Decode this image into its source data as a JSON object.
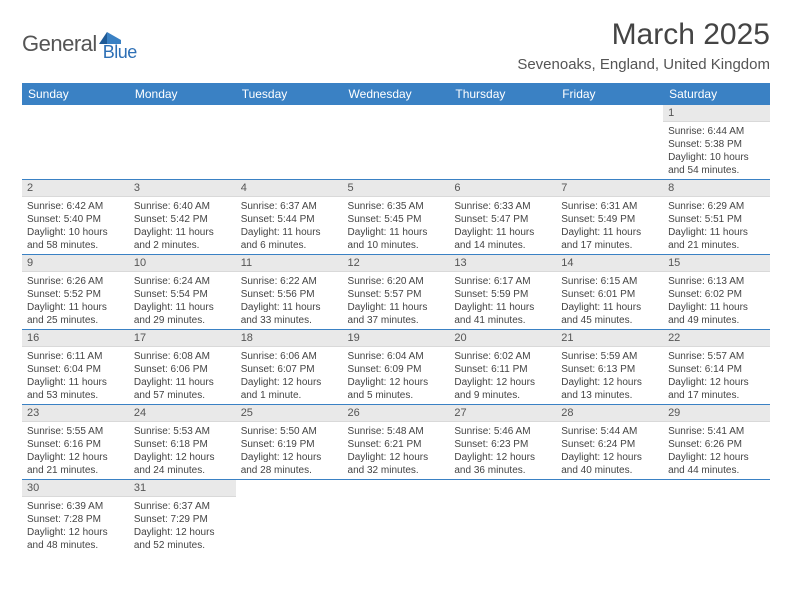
{
  "brand": {
    "name1": "General",
    "name2": "Blue"
  },
  "title": "March 2025",
  "location": "Sevenoaks, England, United Kingdom",
  "colors": {
    "header_bg": "#3a81c4",
    "header_fg": "#ffffff",
    "daynum_bg": "#e9e9e9",
    "text": "#444444",
    "brand_gray": "#555555",
    "brand_blue": "#2d6fb5"
  },
  "dayNames": [
    "Sunday",
    "Monday",
    "Tuesday",
    "Wednesday",
    "Thursday",
    "Friday",
    "Saturday"
  ],
  "weeks": [
    [
      null,
      null,
      null,
      null,
      null,
      null,
      {
        "n": "1",
        "sr": "Sunrise: 6:44 AM",
        "ss": "Sunset: 5:38 PM",
        "dl": "Daylight: 10 hours and 54 minutes."
      }
    ],
    [
      {
        "n": "2",
        "sr": "Sunrise: 6:42 AM",
        "ss": "Sunset: 5:40 PM",
        "dl": "Daylight: 10 hours and 58 minutes."
      },
      {
        "n": "3",
        "sr": "Sunrise: 6:40 AM",
        "ss": "Sunset: 5:42 PM",
        "dl": "Daylight: 11 hours and 2 minutes."
      },
      {
        "n": "4",
        "sr": "Sunrise: 6:37 AM",
        "ss": "Sunset: 5:44 PM",
        "dl": "Daylight: 11 hours and 6 minutes."
      },
      {
        "n": "5",
        "sr": "Sunrise: 6:35 AM",
        "ss": "Sunset: 5:45 PM",
        "dl": "Daylight: 11 hours and 10 minutes."
      },
      {
        "n": "6",
        "sr": "Sunrise: 6:33 AM",
        "ss": "Sunset: 5:47 PM",
        "dl": "Daylight: 11 hours and 14 minutes."
      },
      {
        "n": "7",
        "sr": "Sunrise: 6:31 AM",
        "ss": "Sunset: 5:49 PM",
        "dl": "Daylight: 11 hours and 17 minutes."
      },
      {
        "n": "8",
        "sr": "Sunrise: 6:29 AM",
        "ss": "Sunset: 5:51 PM",
        "dl": "Daylight: 11 hours and 21 minutes."
      }
    ],
    [
      {
        "n": "9",
        "sr": "Sunrise: 6:26 AM",
        "ss": "Sunset: 5:52 PM",
        "dl": "Daylight: 11 hours and 25 minutes."
      },
      {
        "n": "10",
        "sr": "Sunrise: 6:24 AM",
        "ss": "Sunset: 5:54 PM",
        "dl": "Daylight: 11 hours and 29 minutes."
      },
      {
        "n": "11",
        "sr": "Sunrise: 6:22 AM",
        "ss": "Sunset: 5:56 PM",
        "dl": "Daylight: 11 hours and 33 minutes."
      },
      {
        "n": "12",
        "sr": "Sunrise: 6:20 AM",
        "ss": "Sunset: 5:57 PM",
        "dl": "Daylight: 11 hours and 37 minutes."
      },
      {
        "n": "13",
        "sr": "Sunrise: 6:17 AM",
        "ss": "Sunset: 5:59 PM",
        "dl": "Daylight: 11 hours and 41 minutes."
      },
      {
        "n": "14",
        "sr": "Sunrise: 6:15 AM",
        "ss": "Sunset: 6:01 PM",
        "dl": "Daylight: 11 hours and 45 minutes."
      },
      {
        "n": "15",
        "sr": "Sunrise: 6:13 AM",
        "ss": "Sunset: 6:02 PM",
        "dl": "Daylight: 11 hours and 49 minutes."
      }
    ],
    [
      {
        "n": "16",
        "sr": "Sunrise: 6:11 AM",
        "ss": "Sunset: 6:04 PM",
        "dl": "Daylight: 11 hours and 53 minutes."
      },
      {
        "n": "17",
        "sr": "Sunrise: 6:08 AM",
        "ss": "Sunset: 6:06 PM",
        "dl": "Daylight: 11 hours and 57 minutes."
      },
      {
        "n": "18",
        "sr": "Sunrise: 6:06 AM",
        "ss": "Sunset: 6:07 PM",
        "dl": "Daylight: 12 hours and 1 minute."
      },
      {
        "n": "19",
        "sr": "Sunrise: 6:04 AM",
        "ss": "Sunset: 6:09 PM",
        "dl": "Daylight: 12 hours and 5 minutes."
      },
      {
        "n": "20",
        "sr": "Sunrise: 6:02 AM",
        "ss": "Sunset: 6:11 PM",
        "dl": "Daylight: 12 hours and 9 minutes."
      },
      {
        "n": "21",
        "sr": "Sunrise: 5:59 AM",
        "ss": "Sunset: 6:13 PM",
        "dl": "Daylight: 12 hours and 13 minutes."
      },
      {
        "n": "22",
        "sr": "Sunrise: 5:57 AM",
        "ss": "Sunset: 6:14 PM",
        "dl": "Daylight: 12 hours and 17 minutes."
      }
    ],
    [
      {
        "n": "23",
        "sr": "Sunrise: 5:55 AM",
        "ss": "Sunset: 6:16 PM",
        "dl": "Daylight: 12 hours and 21 minutes."
      },
      {
        "n": "24",
        "sr": "Sunrise: 5:53 AM",
        "ss": "Sunset: 6:18 PM",
        "dl": "Daylight: 12 hours and 24 minutes."
      },
      {
        "n": "25",
        "sr": "Sunrise: 5:50 AM",
        "ss": "Sunset: 6:19 PM",
        "dl": "Daylight: 12 hours and 28 minutes."
      },
      {
        "n": "26",
        "sr": "Sunrise: 5:48 AM",
        "ss": "Sunset: 6:21 PM",
        "dl": "Daylight: 12 hours and 32 minutes."
      },
      {
        "n": "27",
        "sr": "Sunrise: 5:46 AM",
        "ss": "Sunset: 6:23 PM",
        "dl": "Daylight: 12 hours and 36 minutes."
      },
      {
        "n": "28",
        "sr": "Sunrise: 5:44 AM",
        "ss": "Sunset: 6:24 PM",
        "dl": "Daylight: 12 hours and 40 minutes."
      },
      {
        "n": "29",
        "sr": "Sunrise: 5:41 AM",
        "ss": "Sunset: 6:26 PM",
        "dl": "Daylight: 12 hours and 44 minutes."
      }
    ],
    [
      {
        "n": "30",
        "sr": "Sunrise: 6:39 AM",
        "ss": "Sunset: 7:28 PM",
        "dl": "Daylight: 12 hours and 48 minutes."
      },
      {
        "n": "31",
        "sr": "Sunrise: 6:37 AM",
        "ss": "Sunset: 7:29 PM",
        "dl": "Daylight: 12 hours and 52 minutes."
      },
      null,
      null,
      null,
      null,
      null
    ]
  ]
}
